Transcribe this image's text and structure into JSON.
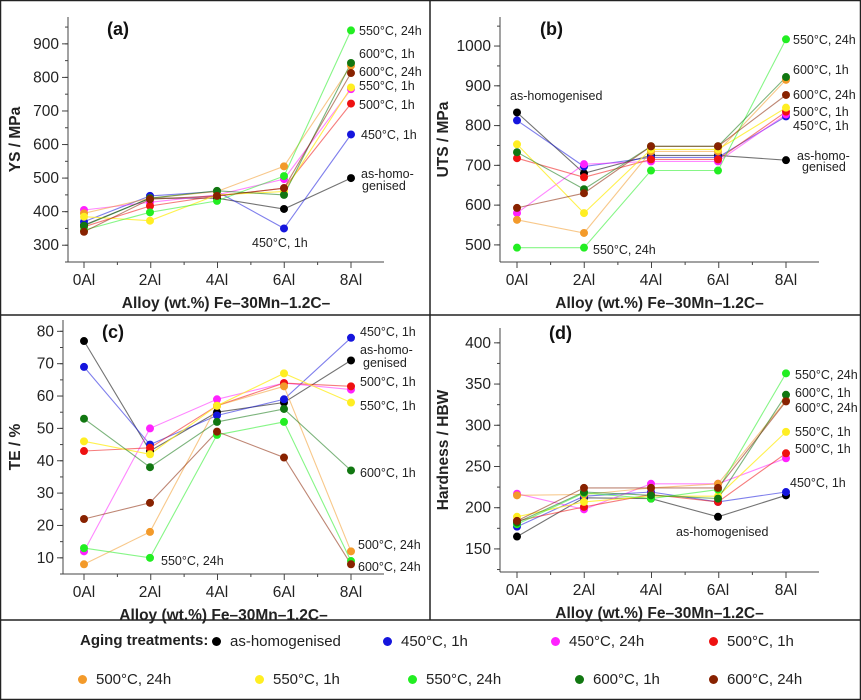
{
  "legend": {
    "title": "Aging treatments:",
    "items": [
      {
        "label": "as-homogenised",
        "color": "#000000"
      },
      {
        "label": "450°C, 1h",
        "color": "#1515dd"
      },
      {
        "label": "450°C, 24h",
        "color": "#ff22ff"
      },
      {
        "label": "500°C, 1h",
        "color": "#ee1111"
      },
      {
        "label": "500°C, 24h",
        "color": "#f39a2a"
      },
      {
        "label": "550°C, 1h",
        "color": "#ffee22"
      },
      {
        "label": "550°C, 24h",
        "color": "#22ee22"
      },
      {
        "label": "600°C, 1h",
        "color": "#117711"
      },
      {
        "label": "600°C, 24h",
        "color": "#882200"
      }
    ]
  },
  "chart_data": [
    {
      "type": "line",
      "panel_label": "(a)",
      "xlabel": "Alloy (wt.%) Fe–30Mn–1.2C–",
      "ylabel": "YS / MPa",
      "categories": [
        "0Al",
        "2Al",
        "4Al",
        "6Al",
        "8Al"
      ],
      "yticks": [
        300,
        400,
        500,
        600,
        700,
        800,
        900
      ],
      "ylim": [
        250,
        980
      ],
      "series": [
        {
          "name": "as-homogenised",
          "values": [
            360,
            440,
            440,
            408,
            500
          ]
        },
        {
          "name": "450°C, 1h",
          "values": [
            370,
            447,
            460,
            350,
            630
          ]
        },
        {
          "name": "450°C, 24h",
          "values": [
            405,
            428,
            450,
            497,
            765
          ]
        },
        {
          "name": "500°C, 1h",
          "values": [
            355,
            417,
            447,
            470,
            722
          ]
        },
        {
          "name": "500°C, 24h",
          "values": [
            395,
            440,
            460,
            535,
            835
          ]
        },
        {
          "name": "550°C, 1h",
          "values": [
            385,
            373,
            450,
            460,
            770
          ]
        },
        {
          "name": "550°C, 24h",
          "values": [
            345,
            398,
            432,
            506,
            940
          ]
        },
        {
          "name": "600°C, 1h",
          "values": [
            358,
            440,
            462,
            450,
            843
          ]
        },
        {
          "name": "600°C, 24h",
          "values": [
            340,
            437,
            447,
            470,
            813
          ]
        }
      ],
      "annotations": [
        "550°C, 24h",
        "600°C, 1h",
        "600°C, 24h",
        "550°C, 1h",
        "500°C, 1h",
        "450°C, 1h",
        "as-homo-",
        "genised",
        "450°C, 1h"
      ]
    },
    {
      "type": "line",
      "panel_label": "(b)",
      "xlabel": "Alloy (wt.%) Fe–30Mn–1.2C–",
      "ylabel": "UTS / MPa",
      "categories": [
        "0Al",
        "2Al",
        "4Al",
        "6Al",
        "8Al"
      ],
      "yticks": [
        500,
        600,
        700,
        800,
        900,
        1000
      ],
      "ylim": [
        457,
        1073
      ],
      "series": [
        {
          "name": "as-homogenised",
          "values": [
            833,
            680,
            725,
            725,
            713
          ]
        },
        {
          "name": "450°C, 1h",
          "values": [
            813,
            697,
            720,
            720,
            823
          ]
        },
        {
          "name": "450°C, 24h",
          "values": [
            580,
            703,
            710,
            710,
            828
          ]
        },
        {
          "name": "500°C, 1h",
          "values": [
            718,
            670,
            715,
            715,
            835
          ]
        },
        {
          "name": "500°C, 24h",
          "values": [
            563,
            530,
            735,
            735,
            915
          ]
        },
        {
          "name": "550°C, 1h",
          "values": [
            753,
            580,
            740,
            740,
            845
          ]
        },
        {
          "name": "550°C, 24h",
          "values": [
            493,
            493,
            687,
            687,
            1017
          ]
        },
        {
          "name": "600°C, 1h",
          "values": [
            733,
            640,
            748,
            748,
            922
          ]
        },
        {
          "name": "600°C, 24h",
          "values": [
            593,
            630,
            748,
            748,
            877
          ]
        }
      ],
      "annotations": [
        "550°C, 24h",
        "600°C, 1h",
        "600°C, 24h",
        "500°C, 1h",
        "450°C, 1h",
        "as-homo-",
        "genised",
        "as-homogenised",
        "550°C, 24h"
      ]
    },
    {
      "type": "line",
      "panel_label": "(c)",
      "xlabel": "Alloy (wt.%) Fe–30Mn–1.2C–",
      "ylabel": "TE / %",
      "categories": [
        "0Al",
        "2Al",
        "4Al",
        "6Al",
        "8Al"
      ],
      "yticks": [
        10,
        20,
        30,
        40,
        50,
        60,
        70,
        80
      ],
      "ylim": [
        5,
        83.5
      ],
      "series": [
        {
          "name": "as-homogenised",
          "values": [
            77,
            43,
            55,
            58,
            71
          ]
        },
        {
          "name": "450°C, 1h",
          "values": [
            69,
            45,
            54,
            59,
            78
          ]
        },
        {
          "name": "450°C, 24h",
          "values": [
            12,
            50,
            59,
            64,
            62
          ]
        },
        {
          "name": "500°C, 1h",
          "values": [
            43,
            44,
            57,
            64,
            63
          ]
        },
        {
          "name": "500°C, 24h",
          "values": [
            8,
            18,
            57,
            63,
            12
          ]
        },
        {
          "name": "550°C, 1h",
          "values": [
            46,
            42,
            57,
            67,
            58
          ]
        },
        {
          "name": "550°C, 24h",
          "values": [
            13,
            10,
            48,
            52,
            9
          ]
        },
        {
          "name": "600°C, 1h",
          "values": [
            53,
            38,
            52,
            56,
            37
          ]
        },
        {
          "name": "600°C, 24h",
          "values": [
            22,
            27,
            49,
            41,
            8
          ]
        }
      ],
      "annotations": [
        "450°C, 1h",
        "as-homo-",
        "genised",
        "500°C, 1h",
        "550°C, 1h",
        "600°C, 1h",
        "500°C, 24h",
        "600°C, 24h",
        "550°C, 24h"
      ]
    },
    {
      "type": "line",
      "panel_label": "(d)",
      "xlabel": "Alloy (wt.%) Fe–30Mn–1.2C–",
      "ylabel": "Hardness / HBW",
      "categories": [
        "0Al",
        "2Al",
        "4Al",
        "6Al",
        "8Al"
      ],
      "yticks": [
        150,
        200,
        250,
        300,
        350,
        400
      ],
      "ylim": [
        122,
        418
      ],
      "series": [
        {
          "name": "as-homogenised",
          "values": [
            165,
            212,
            211,
            189,
            215
          ]
        },
        {
          "name": "450°C, 1h",
          "values": [
            177,
            214,
            219,
            207,
            219
          ]
        },
        {
          "name": "450°C, 24h",
          "values": [
            217,
            198,
            229,
            229,
            260
          ]
        },
        {
          "name": "500°C, 1h",
          "values": [
            184,
            201,
            216,
            207,
            266
          ]
        },
        {
          "name": "500°C, 24h",
          "values": [
            215,
            216,
            224,
            229,
            330
          ]
        },
        {
          "name": "550°C, 1h",
          "values": [
            189,
            207,
            214,
            214,
            292
          ]
        },
        {
          "name": "550°C, 24h",
          "values": [
            180,
            218,
            211,
            222,
            363
          ]
        },
        {
          "name": "600°C, 1h",
          "values": [
            182,
            219,
            215,
            211,
            337
          ]
        },
        {
          "name": "600°C, 24h",
          "values": [
            184,
            224,
            224,
            224,
            329
          ]
        }
      ],
      "annotations": [
        "550°C, 24h",
        "600°C, 1h",
        "600°C, 24h",
        "550°C, 1h",
        "500°C, 1h",
        "450°C, 1h",
        "as-homogenised"
      ]
    }
  ]
}
